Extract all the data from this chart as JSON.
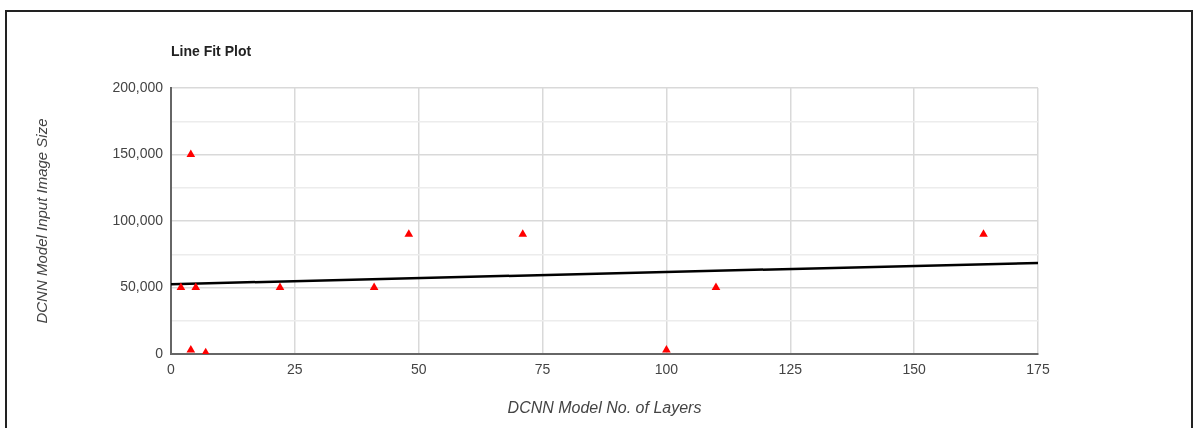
{
  "chart_data": {
    "type": "scatter",
    "title": "Line Fit Plot",
    "xlabel": "DCNN Model No. of Layers",
    "ylabel": "DCNN Model Input Image Size",
    "series": [
      {
        "color": "#ff0000",
        "x": [
          2,
          4,
          5,
          4,
          7,
          22,
          41,
          48,
          71,
          100,
          110,
          164
        ],
        "values": [
          50000,
          150000,
          50000,
          3000,
          1000,
          50000,
          50000,
          90000,
          90000,
          3000,
          50000,
          90000
        ]
      },
      {
        "type": "line",
        "color": "#000000",
        "marker": "none",
        "x": [
          0,
          175
        ],
        "values": [
          52500,
          68500
        ]
      }
    ],
    "xlim": [
      0,
      175
    ],
    "xticks": [
      0,
      25,
      50,
      75,
      100,
      125,
      150,
      175
    ],
    "ylim": [
      0,
      200000
    ],
    "yticks": [
      {
        "value": 0,
        "label": "0"
      },
      {
        "value": 25000,
        "label": null
      },
      {
        "value": 50000,
        "label": "50,000"
      },
      {
        "value": 75000,
        "label": null
      },
      {
        "value": 100000,
        "label": "100,000"
      },
      {
        "value": 125000,
        "label": null
      },
      {
        "value": 150000,
        "label": "150,000"
      },
      {
        "value": 175000,
        "label": null
      },
      {
        "value": 200000,
        "label": "200,000"
      }
    ],
    "grid": true,
    "legend": false,
    "marker": "triangle"
  }
}
